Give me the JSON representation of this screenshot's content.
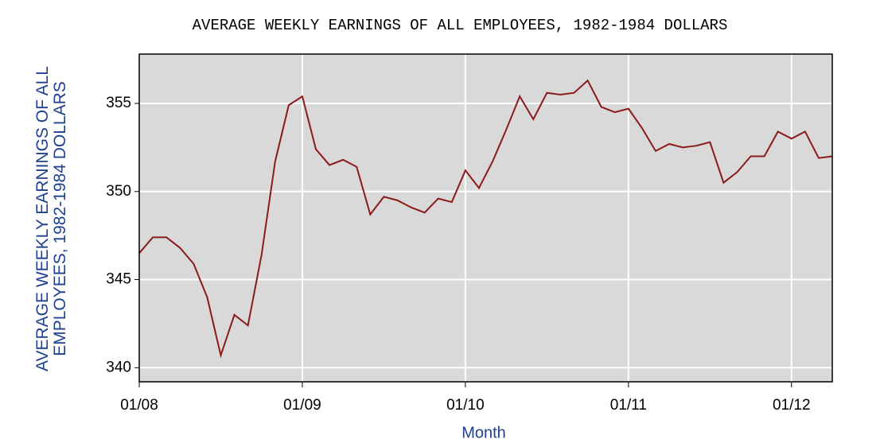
{
  "chart_data": {
    "type": "line",
    "title": "AVERAGE WEEKLY EARNINGS OF ALL EMPLOYEES, 1982-1984 DOLLARS",
    "x_label": "Month",
    "y_label": "AVERAGE WEEKLY EARNINGS OF ALL EMPLOYEES, 1982-1984 DOLLARS",
    "categories": [
      "01/08",
      null,
      null,
      null,
      null,
      null,
      null,
      null,
      null,
      null,
      null,
      null,
      "01/09",
      null,
      null,
      null,
      null,
      null,
      null,
      null,
      null,
      null,
      null,
      null,
      "01/10",
      null,
      null,
      null,
      null,
      null,
      null,
      null,
      null,
      null,
      null,
      null,
      "01/11",
      null,
      null,
      null,
      null,
      null,
      null,
      null,
      null,
      null,
      null,
      null,
      "01/12",
      null,
      null,
      null
    ],
    "series": [
      {
        "color": "#8b1a1a",
        "values": [
          346.5,
          347.4,
          347.4,
          346.8,
          345.9,
          344.0,
          340.7,
          343.0,
          342.4,
          346.4,
          351.7,
          354.9,
          355.4,
          352.4,
          351.5,
          351.8,
          351.4,
          348.7,
          349.7,
          349.5,
          349.1,
          348.8,
          349.6,
          349.4,
          351.2,
          350.2,
          351.7,
          353.5,
          355.4,
          354.1,
          355.6,
          355.5,
          355.6,
          356.3,
          354.8,
          354.5,
          354.7,
          353.6,
          352.3,
          352.7,
          352.5,
          352.6,
          352.8,
          350.5,
          351.1,
          352.0,
          352.0,
          353.4,
          353.0,
          353.4,
          351.9,
          352.0
        ]
      }
    ],
    "ylim": [
      339.2,
      357.8
    ],
    "yticks": [
      340,
      345,
      350,
      355
    ],
    "grid": true
  }
}
